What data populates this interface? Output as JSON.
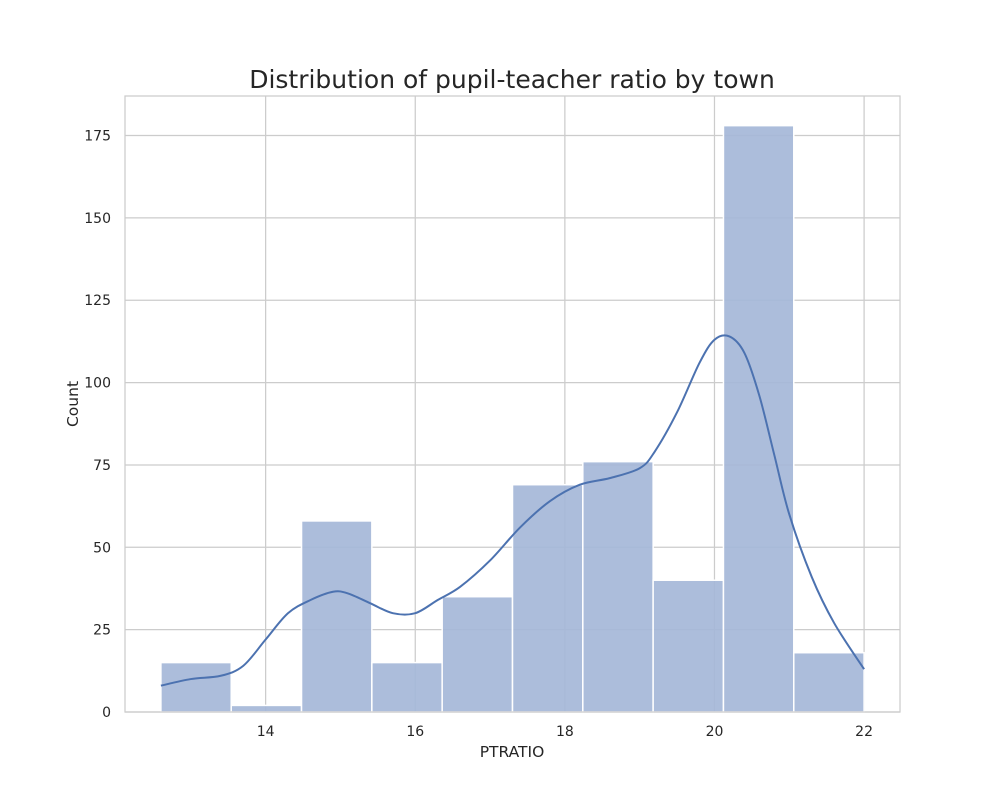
{
  "chart_data": {
    "type": "bar",
    "title": "Distribution of pupil-teacher ratio by town",
    "xlabel": "PTRATIO",
    "ylabel": "Count",
    "xlim": [
      12.12,
      22.48
    ],
    "ylim": [
      0,
      187
    ],
    "xticks": [
      14,
      16,
      18,
      20,
      22
    ],
    "yticks": [
      0,
      25,
      50,
      75,
      100,
      125,
      150,
      175
    ],
    "grid": true,
    "colors": {
      "bar": "#a5b7d8",
      "kde": "#4c72b0",
      "grid": "#cccccc",
      "spine": "#cccccc"
    },
    "bins": [
      {
        "x0": 12.6,
        "x1": 13.54,
        "count": 15
      },
      {
        "x0": 13.54,
        "x1": 14.48,
        "count": 2
      },
      {
        "x0": 14.48,
        "x1": 15.42,
        "count": 58
      },
      {
        "x0": 15.42,
        "x1": 16.36,
        "count": 15
      },
      {
        "x0": 16.36,
        "x1": 17.3,
        "count": 35
      },
      {
        "x0": 17.3,
        "x1": 18.24,
        "count": 69
      },
      {
        "x0": 18.24,
        "x1": 19.18,
        "count": 76
      },
      {
        "x0": 19.18,
        "x1": 20.12,
        "count": 40
      },
      {
        "x0": 20.12,
        "x1": 21.06,
        "count": 178
      },
      {
        "x0": 21.06,
        "x1": 22.0,
        "count": 18
      }
    ],
    "kde": {
      "x": [
        12.6,
        13.0,
        13.4,
        13.7,
        14.0,
        14.3,
        14.6,
        14.9,
        15.1,
        15.4,
        15.7,
        16.0,
        16.3,
        16.6,
        17.0,
        17.4,
        17.8,
        18.2,
        18.6,
        19.0,
        19.2,
        19.5,
        19.8,
        20.0,
        20.2,
        20.4,
        20.6,
        20.8,
        21.0,
        21.3,
        21.6,
        22.0
      ],
      "y": [
        8,
        10,
        11,
        14,
        22,
        30,
        34,
        36.5,
        36,
        33,
        30,
        30,
        34,
        38,
        46,
        56,
        64,
        69,
        71,
        74,
        79,
        91,
        106,
        113,
        114,
        109,
        96,
        78,
        60,
        41,
        27,
        13
      ]
    }
  }
}
